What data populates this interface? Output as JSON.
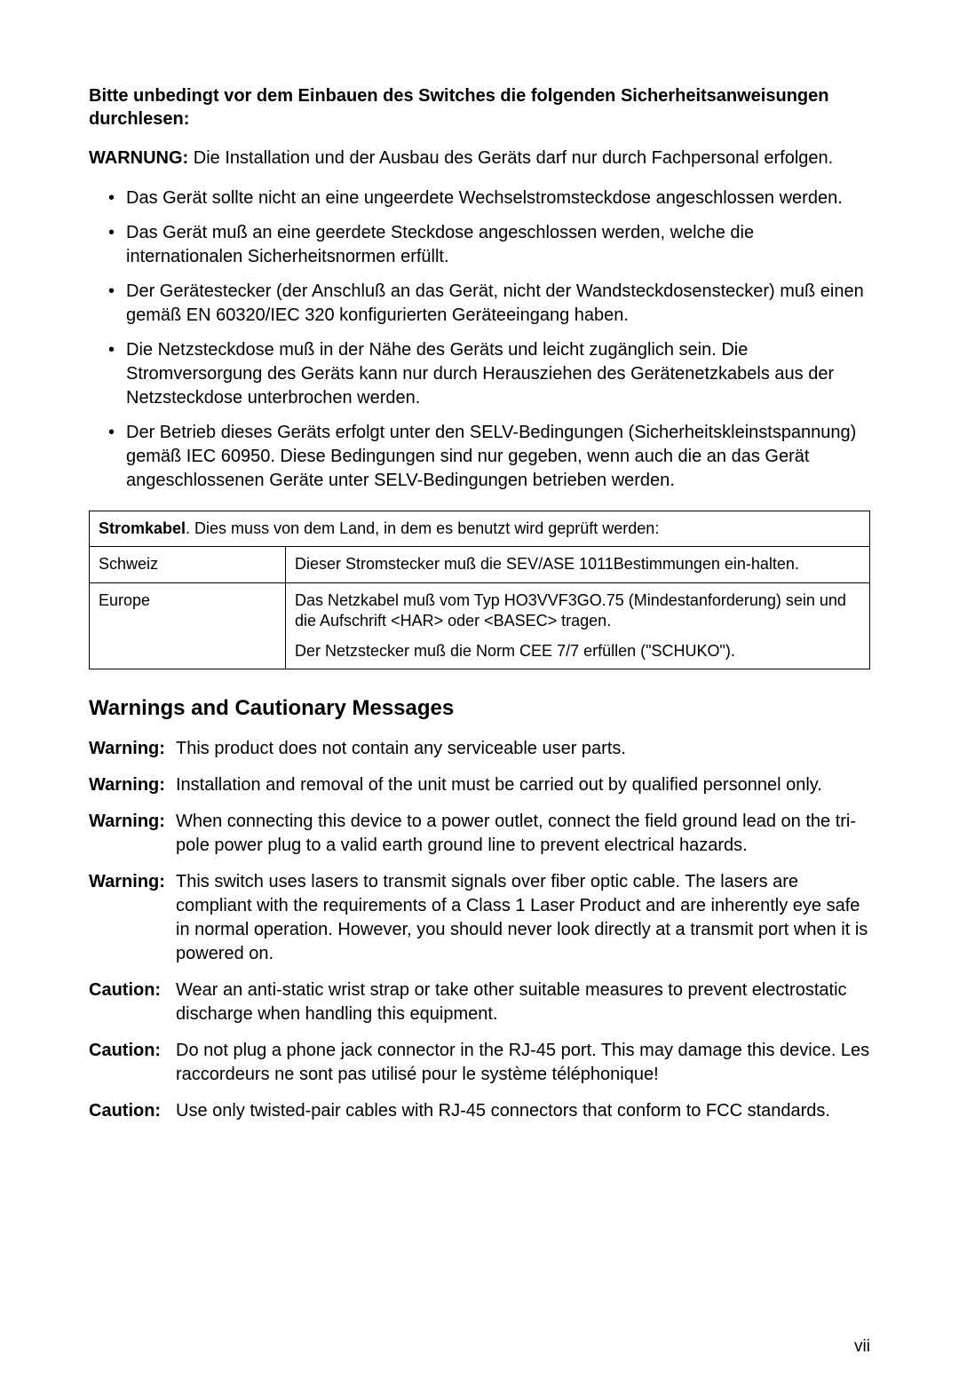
{
  "intro_heading": "Bitte unbedingt vor dem Einbauen des Switches die folgenden Sicherheitsanweisungen durchlesen:",
  "warnung_label": "WARNUNG:",
  "warnung_text": " Die Installation und der Ausbau des Geräts darf nur durch Fachpersonal erfolgen.",
  "bullets": [
    "Das Gerät sollte nicht an eine ungeerdete Wechselstromsteckdose angeschlossen werden.",
    "Das Gerät muß an eine geerdete Steckdose angeschlossen werden, welche die internationalen Sicherheitsnormen erfüllt.",
    "Der Gerätestecker (der Anschluß an das Gerät, nicht der Wandsteckdosenstecker) muß einen gemäß EN 60320/IEC 320 konfigurierten Geräteeingang haben.",
    "Die Netzsteckdose muß in der Nähe des Geräts und leicht zugänglich sein. Die Stromversorgung des Geräts kann nur durch Herausziehen des Gerätenetzkabels aus der Netzsteckdose unterbrochen werden.",
    "Der Betrieb dieses Geräts erfolgt unter den SELV-Bedingungen (Sicherheitskleinstspannung) gemäß IEC 60950. Diese Bedingungen sind nur gegeben, wenn auch die an das Gerät angeschlossenen Geräte unter SELV-Bedingungen  betrieben werden."
  ],
  "table": {
    "header_bold": "Stromkabel",
    "header_rest": ". Dies muss von dem Land, in dem es benutzt wird geprüft werden:",
    "rows": [
      {
        "country": "Schweiz",
        "text": "Dieser Stromstecker muß die SEV/ASE 1011Bestimmungen ein-halten."
      },
      {
        "country": "Europe",
        "text": "Das Netzkabel muß vom Typ HO3VVF3GO.75 (Mindestanforderung) sein und die Aufschrift <HAR> oder <BASEC> tragen.",
        "text2": "Der Netzstecker muß die Norm CEE 7/7 erfüllen (\"SCHUKO\")."
      }
    ]
  },
  "section_heading": "Warnings and Cautionary Messages",
  "messages": [
    {
      "label": "Warning:",
      "text": "This product does not contain any serviceable user parts."
    },
    {
      "label": "Warning:",
      "text": "Installation and removal of the unit must be carried out by qualified personnel only."
    },
    {
      "label": "Warning:",
      "text": "When connecting this device to a power outlet, connect the field ground lead on the tri-pole power plug to a valid earth ground line to prevent electrical hazards."
    },
    {
      "label": "Warning:",
      "text": "This switch uses lasers to transmit signals over fiber optic cable. The lasers are compliant with the requirements of a Class 1 Laser Product and are inherently eye safe in normal operation. However, you should never look directly at a transmit port when it is powered on."
    },
    {
      "label": "Caution:",
      "text": "Wear an anti-static wrist strap or take other suitable measures to prevent electrostatic discharge when handling this equipment."
    },
    {
      "label": "Caution:",
      "text": "Do not plug a phone jack connector in the RJ-45 port. This may damage this device. Les raccordeurs ne sont pas utilisé pour le système téléphonique!"
    },
    {
      "label": "Caution:",
      "text": "Use only twisted-pair cables with RJ-45 connectors that conform to FCC standards."
    }
  ],
  "page_number": "vii"
}
